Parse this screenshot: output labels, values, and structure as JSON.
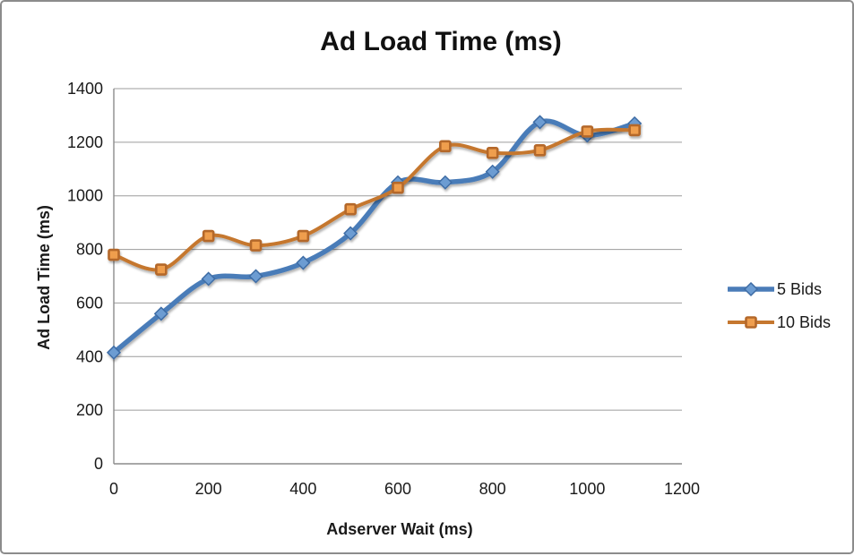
{
  "window": {
    "background": "#ffffff",
    "border_color": "#8c8c8c"
  },
  "chart_data": {
    "type": "line",
    "title": "Ad Load Time (ms)",
    "xlabel": "Adserver Wait (ms)",
    "ylabel": "Ad Load Time (ms)",
    "x": [
      0,
      100,
      200,
      300,
      400,
      500,
      600,
      700,
      800,
      900,
      1000,
      1100
    ],
    "series": [
      {
        "name": "5 Bids",
        "values": [
          415,
          560,
          690,
          700,
          750,
          860,
          1050,
          1050,
          1090,
          1275,
          1225,
          1270
        ],
        "color": "#4a7cb8",
        "marker": "diamond",
        "marker_fill": "#6c9cd2",
        "marker_stroke": "#3e6ca5",
        "line_width": 5.5
      },
      {
        "name": "10 Bids",
        "values": [
          780,
          725,
          850,
          815,
          850,
          950,
          1030,
          1185,
          1160,
          1170,
          1240,
          1245
        ],
        "color": "#c5772f",
        "marker": "square",
        "marker_fill": "#ef9e4e",
        "marker_stroke": "#b4682a",
        "line_width": 4
      }
    ],
    "xlim": [
      0,
      1200
    ],
    "ylim": [
      0,
      1400
    ],
    "x_ticks": [
      0,
      200,
      400,
      600,
      800,
      1000,
      1200
    ],
    "y_ticks": [
      0,
      200,
      400,
      600,
      800,
      1000,
      1200,
      1400
    ],
    "grid": "horizontal",
    "grid_color": "#9c9c9c",
    "axis_color": "#8c8c8c",
    "tick_label_color": "#1a1a1a",
    "legend_position": "right",
    "smooth": true
  }
}
